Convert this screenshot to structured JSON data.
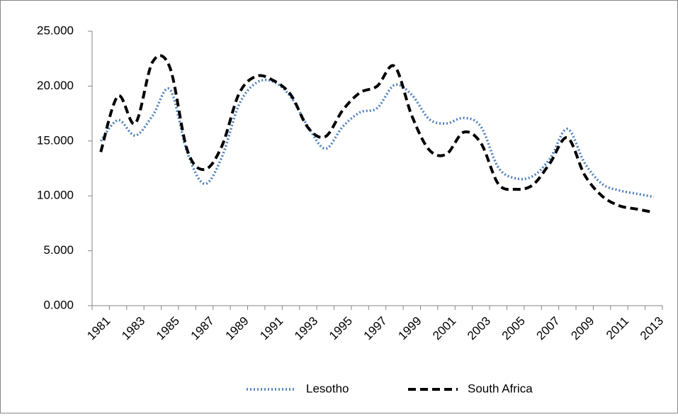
{
  "chart_data": {
    "type": "line",
    "categories": [
      "1981",
      null,
      "1983",
      null,
      "1985",
      null,
      "1987",
      null,
      "1989",
      null,
      "1991",
      null,
      "1993",
      null,
      "1995",
      null,
      "1997",
      null,
      "1999",
      null,
      "2001",
      null,
      "2003",
      null,
      "2005",
      null,
      "2007",
      null,
      "2009",
      null,
      "2011",
      null,
      "2013"
    ],
    "series": [
      {
        "name": "Lesotho",
        "color": "#4f81bd",
        "style": "dotted",
        "values": [
          15.0,
          16.9,
          15.5,
          17.3,
          19.7,
          14.0,
          11.1,
          13.5,
          18.3,
          20.3,
          20.4,
          19.0,
          16.3,
          14.3,
          16.3,
          17.6,
          18.0,
          20.1,
          19.2,
          17.0,
          16.6,
          17.1,
          16.3,
          12.6,
          11.6,
          11.8,
          13.4,
          16.1,
          13.0,
          11.1,
          10.5,
          10.2,
          9.9
        ]
      },
      {
        "name": "South Africa",
        "color": "#000000",
        "style": "dashed",
        "values": [
          14.0,
          19.1,
          16.6,
          22.2,
          21.7,
          14.2,
          12.4,
          14.5,
          19.3,
          20.9,
          20.5,
          19.2,
          16.2,
          15.4,
          17.8,
          19.4,
          20.0,
          21.8,
          17.3,
          14.2,
          13.8,
          15.8,
          14.8,
          11.1,
          10.6,
          11.0,
          13.0,
          15.3,
          11.9,
          10.0,
          9.1,
          8.8,
          8.5
        ]
      }
    ],
    "ylim": [
      0,
      25
    ],
    "yticks": [
      {
        "value": 0,
        "label": "0.000"
      },
      {
        "value": 5,
        "label": "5.000"
      },
      {
        "value": 10,
        "label": "10.000"
      },
      {
        "value": 15,
        "label": "15.000"
      },
      {
        "value": 20,
        "label": "20.000"
      },
      {
        "value": 25,
        "label": "25.000"
      }
    ],
    "smooth": true,
    "legend": "bottom"
  }
}
